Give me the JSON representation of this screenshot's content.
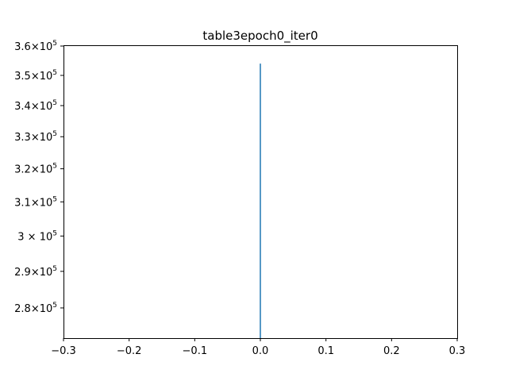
{
  "chart_data": {
    "type": "line",
    "title": "table3epoch0_iter0",
    "xlabel": "",
    "ylabel": "",
    "xlim": [
      -0.3,
      0.3
    ],
    "ylim": [
      272000,
      360000
    ],
    "yscale": "log",
    "grid": false,
    "x_ticks": [
      {
        "value": -0.3,
        "label": "−0.3"
      },
      {
        "value": -0.2,
        "label": "−0.2"
      },
      {
        "value": -0.1,
        "label": "−0.1"
      },
      {
        "value": 0.0,
        "label": "0.0"
      },
      {
        "value": 0.1,
        "label": "0.1"
      },
      {
        "value": 0.2,
        "label": "0.2"
      },
      {
        "value": 0.3,
        "label": "0.3"
      }
    ],
    "y_ticks": [
      {
        "value": 280000,
        "mantissa": "2.8"
      },
      {
        "value": 290000,
        "mantissa": "2.9"
      },
      {
        "value": 300000,
        "mantissa": "3"
      },
      {
        "value": 310000,
        "mantissa": "3.1"
      },
      {
        "value": 320000,
        "mantissa": "3.2"
      },
      {
        "value": 330000,
        "mantissa": "3.3"
      },
      {
        "value": 340000,
        "mantissa": "3.4"
      },
      {
        "value": 350000,
        "mantissa": "3.5"
      },
      {
        "value": 360000,
        "mantissa": "3.6"
      }
    ],
    "tick_base": "10",
    "tick_exponent": "5",
    "series": [
      {
        "color": "#1f77b4",
        "x": [
          0.0,
          0.0
        ],
        "y": [
          272000,
          354000
        ]
      }
    ]
  }
}
